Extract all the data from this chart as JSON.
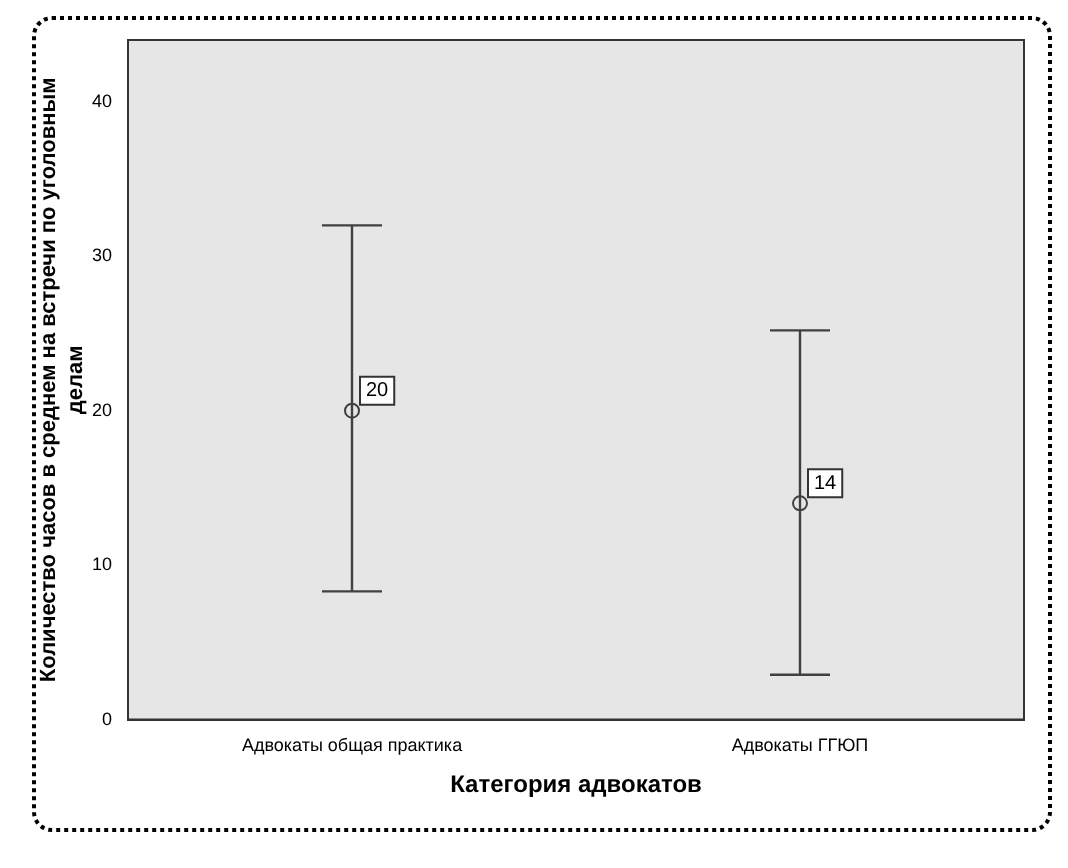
{
  "chart_data": {
    "type": "scatter",
    "xlabel": "Категория адвокатов",
    "ylabel": "Количество часов в среднем на встречи по уголовным делам",
    "categories": [
      "Адвокаты общая практика",
      "Адвокаты ГГЮП"
    ],
    "values": [
      20,
      14
    ],
    "errors": [
      [
        8.3,
        32
      ],
      [
        2.9,
        25.2
      ]
    ],
    "color": "#404040",
    "marker": "circle",
    "data_labels": true,
    "ylim": [
      0,
      44
    ],
    "yticks": [
      0,
      10,
      20,
      30,
      40
    ],
    "grid": false,
    "legend": false
  }
}
